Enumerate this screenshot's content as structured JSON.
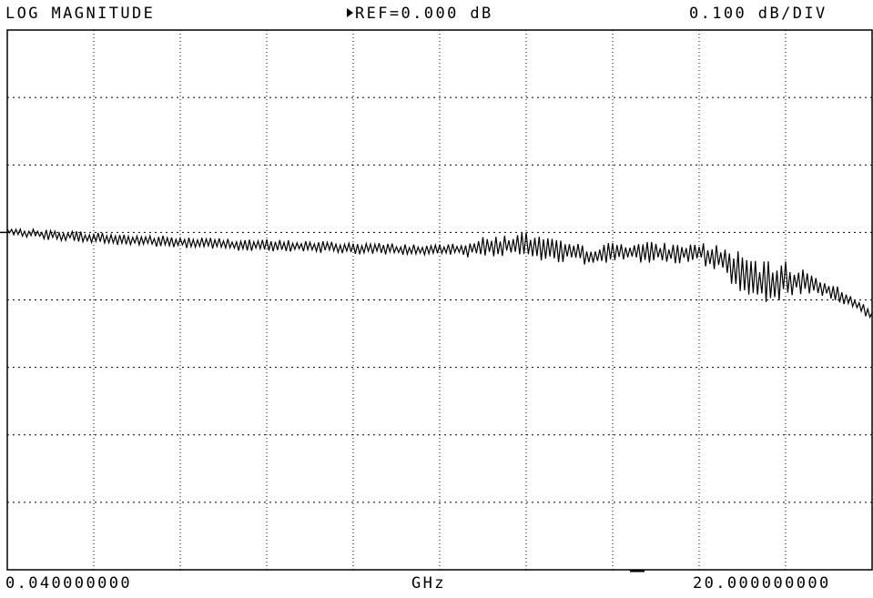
{
  "header": {
    "format": "LOG MAGNITUDE",
    "reference": "REF=0.000 dB",
    "scale": "0.100 dB/DIV"
  },
  "footer": {
    "start": "0.040000000",
    "unit": "GHz",
    "stop": "20.000000000"
  },
  "chart_data": {
    "type": "line",
    "xlabel": "GHz",
    "ylabel": "",
    "xlim": [
      0.04,
      20.0
    ],
    "ylim": [
      -0.5,
      0.3
    ],
    "grid": true,
    "x_divisions": 10,
    "y_divisions": 8,
    "reference_db": 0.0,
    "scale_db_per_div": 0.1,
    "series": [
      {
        "x": [
          0.04,
          0.5,
          1.0,
          1.5,
          2.0,
          2.5,
          3.0,
          3.5,
          4.0,
          4.5,
          5.0,
          5.5,
          6.0,
          6.5,
          7.0,
          7.5,
          8.0,
          8.5,
          9.0,
          9.5,
          10.0,
          10.5,
          11.0,
          11.5,
          12.0,
          12.5,
          13.0,
          13.5,
          14.0,
          14.5,
          15.0,
          15.5,
          16.0,
          16.5,
          17.0,
          17.5,
          18.0,
          18.5,
          19.0,
          19.5,
          20.0
        ],
        "values": [
          0.002,
          -0.001,
          -0.004,
          -0.005,
          -0.008,
          -0.01,
          -0.012,
          -0.013,
          -0.015,
          -0.016,
          -0.017,
          -0.018,
          -0.019,
          -0.02,
          -0.021,
          -0.022,
          -0.023,
          -0.024,
          -0.025,
          -0.026,
          -0.027,
          -0.025,
          -0.022,
          -0.02,
          -0.018,
          -0.025,
          -0.03,
          -0.035,
          -0.03,
          -0.028,
          -0.03,
          -0.032,
          -0.03,
          -0.04,
          -0.06,
          -0.075,
          -0.07,
          -0.075,
          -0.085,
          -0.1,
          -0.125
        ],
        "noise_db": [
          0.004,
          0.006,
          0.008,
          0.008,
          0.009,
          0.009,
          0.009,
          0.009,
          0.009,
          0.009,
          0.009,
          0.009,
          0.009,
          0.009,
          0.009,
          0.009,
          0.009,
          0.009,
          0.009,
          0.009,
          0.009,
          0.012,
          0.015,
          0.018,
          0.02,
          0.018,
          0.016,
          0.015,
          0.016,
          0.016,
          0.016,
          0.016,
          0.016,
          0.022,
          0.03,
          0.032,
          0.028,
          0.02,
          0.013,
          0.01,
          0.008
        ],
        "color": "#000000"
      }
    ]
  }
}
